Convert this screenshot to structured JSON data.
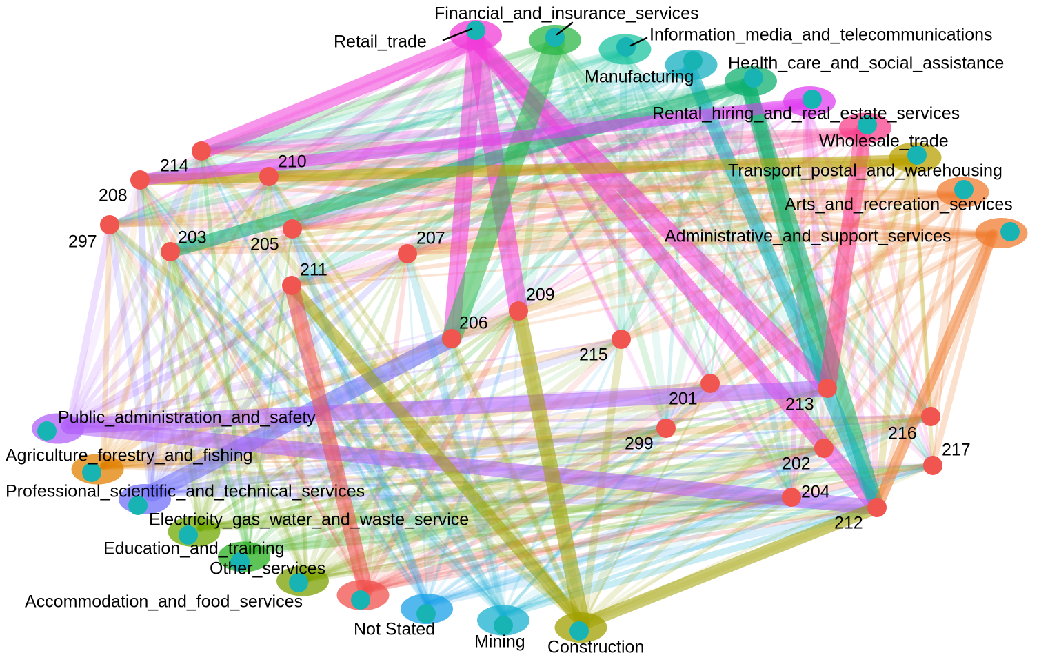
{
  "colors": {
    "region_node": "#F0564F",
    "industry_node": "#18B4B4",
    "background": "#FFFFFF",
    "label_text": "#000000"
  },
  "industries": [
    {
      "id": "retail",
      "label": "Retail_trade",
      "color": "#F03ED8"
    },
    {
      "id": "finance",
      "label": "Financial_and_insurance_services",
      "color": "#2EB84A"
    },
    {
      "id": "infomedia",
      "label": "Information_media_and_telecommunications",
      "color": "#1CC4A0"
    },
    {
      "id": "manufacturing",
      "label": "Manufacturing",
      "color": "#14B0C0"
    },
    {
      "id": "health",
      "label": "Health_care_and_social_assistance",
      "color": "#10B070"
    },
    {
      "id": "rental",
      "label": "Rental_hiring_and_real_estate_services",
      "color": "#E040F0"
    },
    {
      "id": "wholesale",
      "label": "Wholesale_trade",
      "color": "#F8408C"
    },
    {
      "id": "transport",
      "label": "Transport_postal_and_warehousing",
      "color": "#B8A000"
    },
    {
      "id": "arts",
      "label": "Arts_and_recreation_services",
      "color": "#F07C30"
    },
    {
      "id": "admin",
      "label": "Administrative_and_support_services",
      "color": "#F07C30"
    },
    {
      "id": "public",
      "label": "Public_administration_and_safety",
      "color": "#B060F8"
    },
    {
      "id": "agri",
      "label": "Agriculture_forestry_and_fishing",
      "color": "#E08000"
    },
    {
      "id": "professional",
      "label": "Professional_scientific_and_technical_services",
      "color": "#7070F8"
    },
    {
      "id": "electricity",
      "label": "Electricity_gas_water_and_waste_service",
      "color": "#70A800"
    },
    {
      "id": "education",
      "label": "Education_and_training",
      "color": "#28B020"
    },
    {
      "id": "other",
      "label": "Other_services",
      "color": "#7CA000"
    },
    {
      "id": "accommodation",
      "label": "Accommodation_and_food_services",
      "color": "#F0504C"
    },
    {
      "id": "notstated",
      "label": "Not Stated",
      "color": "#18A0E8"
    },
    {
      "id": "mining",
      "label": "Mining",
      "color": "#18B0D0"
    },
    {
      "id": "construction",
      "label": "Construction",
      "color": "#A0A000"
    }
  ],
  "regions": [
    "201",
    "202",
    "203",
    "204",
    "205",
    "206",
    "207",
    "208",
    "209",
    "210",
    "211",
    "212",
    "213",
    "214",
    "215",
    "216",
    "217",
    "297",
    "299"
  ],
  "heavy_links": [
    [
      "retail",
      "212"
    ],
    [
      "retail",
      "213"
    ],
    [
      "retail",
      "206"
    ],
    [
      "retail",
      "214"
    ],
    [
      "retail",
      "209"
    ],
    [
      "health",
      "212"
    ],
    [
      "health",
      "213"
    ],
    [
      "manufacturing",
      "212"
    ],
    [
      "health",
      "203"
    ],
    [
      "professional",
      "206"
    ],
    [
      "public",
      "213"
    ],
    [
      "public",
      "212"
    ],
    [
      "construction",
      "212"
    ],
    [
      "construction",
      "209"
    ],
    [
      "construction",
      "211"
    ],
    [
      "wholesale",
      "213"
    ],
    [
      "finance",
      "206"
    ],
    [
      "admin",
      "212"
    ],
    [
      "accommodation",
      "211"
    ],
    [
      "transport",
      "208"
    ],
    [
      "rental",
      "208"
    ]
  ]
}
